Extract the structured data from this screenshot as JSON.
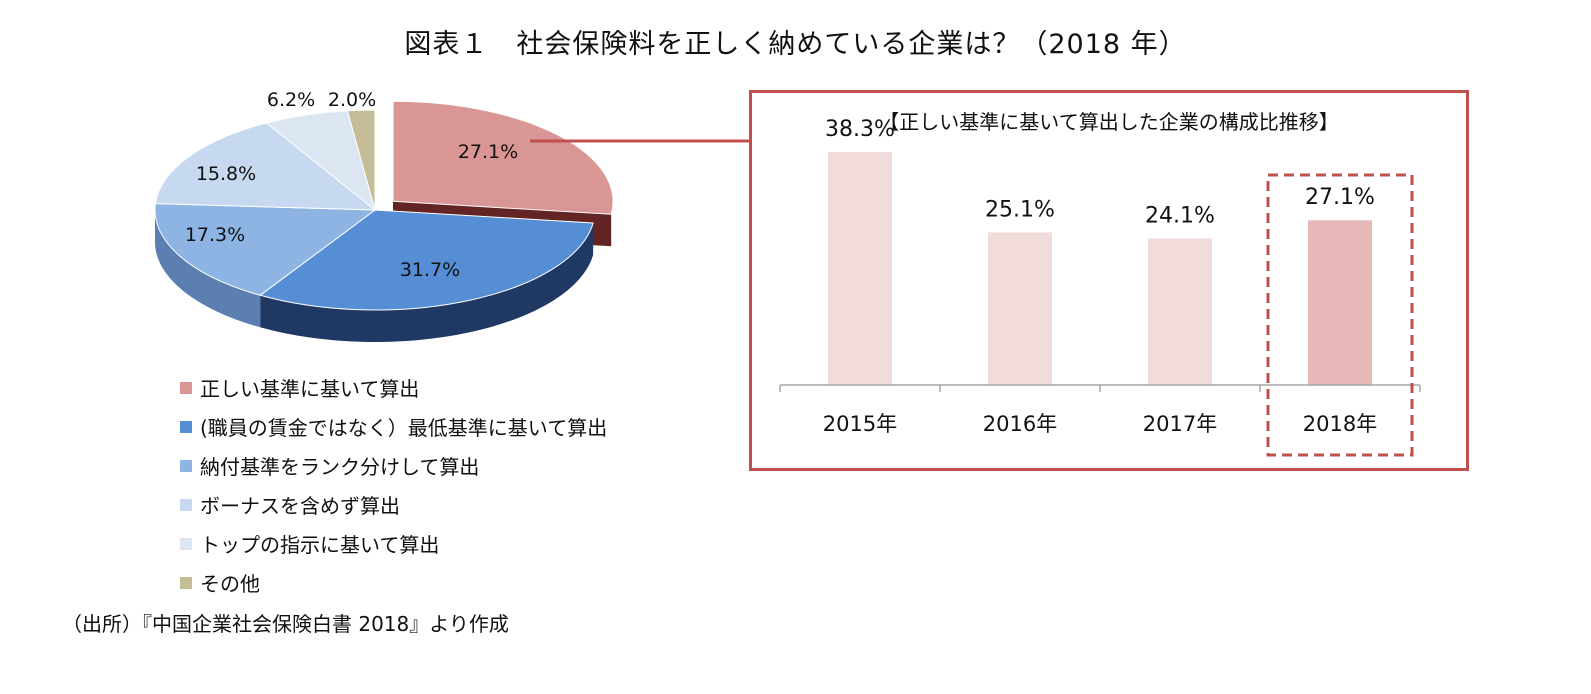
{
  "figure_title": "図表１　社会保険料を正しく納めている企業は？（2018 年）",
  "source_note": "（出所）『中国企業社会保険白書 2018』より作成",
  "chart_data": [
    {
      "type": "pie",
      "title": "",
      "categories": [
        "正しい基準に基いて算出",
        "(職員の賃金ではなく）最低基準に基いて算出",
        "納付基準をランク分けして算出",
        "ボーナスを含めず算出",
        "トップの指示に基いて算出",
        "その他"
      ],
      "values": [
        27.1,
        31.7,
        17.3,
        15.8,
        6.2,
        2.0
      ],
      "value_labels": [
        "27.1%",
        "31.7%",
        "17.3%",
        "15.8%",
        "6.2%",
        "2.0%"
      ],
      "colors": [
        "#d99694",
        "#558ed5",
        "#8eb4e3",
        "#c6d9f1",
        "#dce6f2",
        "#c4bd97"
      ],
      "side_colors": [
        "#632523",
        "#1f3864",
        "#5b7fb0",
        "#a9c0dd",
        "#c8d3e1",
        "#9a9472"
      ],
      "exploded_slice": "正しい基準に基いて算出",
      "legend_placement": "bottom"
    },
    {
      "type": "bar",
      "title": "【正しい基準に基いて算出した企業の構成比推移】",
      "categories": [
        "2015年",
        "2016年",
        "2017年",
        "2018年"
      ],
      "values": [
        38.3,
        25.1,
        24.1,
        27.1
      ],
      "value_labels": [
        "38.3%",
        "25.1%",
        "24.1%",
        "27.1%"
      ],
      "ylim": [
        0,
        50
      ],
      "highlight_category": "2018年",
      "bar_color": "#f2dcdb",
      "highlight_color": "#e6b9b8",
      "frame_color": "#c0504d",
      "highlight_box_color": "#c0504d",
      "axis_color": "#a6a6a6",
      "grid": false
    }
  ]
}
